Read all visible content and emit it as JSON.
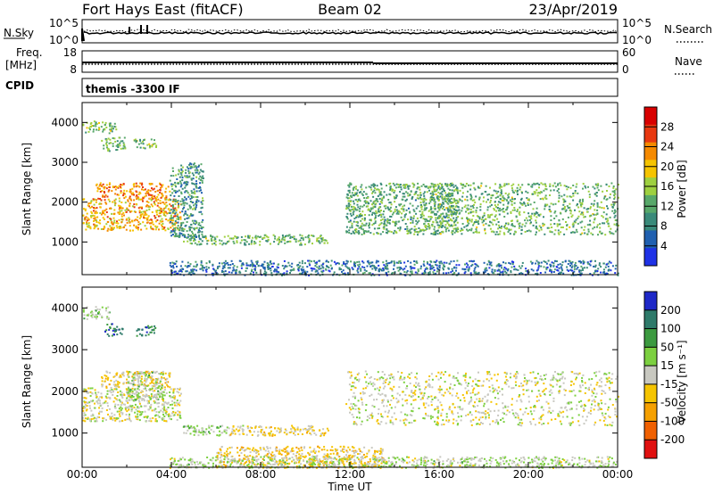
{
  "header": {
    "title": "Fort Hays East (fitACF)",
    "beam": "Beam 02",
    "date": "23/Apr/2019"
  },
  "status_panels": {
    "nsky_label": "N.Sky",
    "nsky_ticks": [
      "10^5",
      "10^0"
    ],
    "nsearch_label": "N.Search",
    "nsearch_ticks": [
      "10^5",
      "10^0"
    ],
    "freq_label_1": "Freq.",
    "freq_label_2": "[MHz]",
    "freq_ticks": [
      "18",
      "8"
    ],
    "nave_label": "Nave",
    "nave_ticks": [
      "60",
      "0"
    ],
    "cpid_label": "CPID",
    "cpid_value": "themis -3300 IF"
  },
  "x_axis": {
    "label": "Time UT",
    "ticks": [
      "00:00",
      "04:00",
      "08:00",
      "12:00",
      "16:00",
      "20:00",
      "00:00"
    ]
  },
  "chart_data": [
    {
      "type": "heatmap",
      "name": "power",
      "ylabel": "Slant Range [km]",
      "yticks": [
        "1000",
        "2000",
        "3000",
        "4000"
      ],
      "ylim": [
        180,
        4500
      ],
      "xlim": [
        0,
        24
      ],
      "colorbar_label": "Power [dB]",
      "colorbar_ticks": [
        "4",
        "8",
        "12",
        "16",
        "20",
        "24",
        "28"
      ],
      "colorbar_range": [
        0,
        32
      ],
      "colors": [
        "#1f32e6",
        "#2060b0",
        "#3a8a7a",
        "#58a86a",
        "#9ed040",
        "#f5c400",
        "#f58a00",
        "#e83810",
        "#d80000"
      ],
      "regions": [
        {
          "t0": 0.0,
          "t1": 1.5,
          "r0": 3750,
          "r1": 4050,
          "level": 14
        },
        {
          "t0": 0.8,
          "t1": 1.9,
          "r0": 3300,
          "r1": 3650,
          "level": 13
        },
        {
          "t0": 2.3,
          "t1": 3.3,
          "r0": 3350,
          "r1": 3600,
          "level": 14
        },
        {
          "t0": 0.0,
          "t1": 4.4,
          "r0": 1300,
          "r1": 2100,
          "level": 21
        },
        {
          "t0": 0.6,
          "t1": 3.9,
          "r0": 2100,
          "r1": 2500,
          "level": 23
        },
        {
          "t0": 3.9,
          "t1": 5.4,
          "r0": 1100,
          "r1": 3000,
          "level": 10
        },
        {
          "t0": 4.5,
          "t1": 11.0,
          "r0": 950,
          "r1": 1200,
          "level": 13
        },
        {
          "t0": 11.8,
          "t1": 16.8,
          "r0": 1200,
          "r1": 2500,
          "level": 12
        },
        {
          "t0": 15.5,
          "t1": 24.0,
          "r0": 1200,
          "r1": 2500,
          "level": 13
        },
        {
          "t0": 3.9,
          "t1": 24.0,
          "r0": 180,
          "r1": 550,
          "level": 7
        }
      ]
    },
    {
      "type": "heatmap",
      "name": "velocity",
      "ylabel": "Slant Range [km]",
      "yticks": [
        "1000",
        "2000",
        "3000",
        "4000"
      ],
      "ylim": [
        180,
        4500
      ],
      "xlim": [
        0,
        24
      ],
      "colorbar_label": "Velocity [m s⁻¹]",
      "colorbar_ticks": [
        "200",
        "100",
        "50",
        "15",
        "-15",
        "-50",
        "-100",
        "-200"
      ],
      "colorbar_range": [
        -250,
        250
      ],
      "colors": [
        "#1e28c8",
        "#2e7a6a",
        "#3c9a40",
        "#7cd040",
        "#c8c8c0",
        "#f5c400",
        "#f5a000",
        "#f06000",
        "#e01010"
      ],
      "regions": [
        {
          "t0": 0.0,
          "t1": 1.2,
          "r0": 3750,
          "r1": 4050,
          "level": 40
        },
        {
          "t0": 1.0,
          "t1": 1.8,
          "r0": 3350,
          "r1": 3650,
          "level": 180
        },
        {
          "t0": 2.4,
          "t1": 3.3,
          "r0": 3350,
          "r1": 3600,
          "level": 160
        },
        {
          "t0": 0.0,
          "t1": 4.4,
          "r0": 1300,
          "r1": 2100,
          "level": 0
        },
        {
          "t0": 0.8,
          "t1": 3.9,
          "r0": 2100,
          "r1": 2500,
          "level": -40
        },
        {
          "t0": 2.0,
          "t1": 3.6,
          "r0": 1800,
          "r1": 2500,
          "level": 30
        },
        {
          "t0": 4.5,
          "t1": 6.5,
          "r0": 950,
          "r1": 1200,
          "level": 35
        },
        {
          "t0": 6.5,
          "t1": 11.0,
          "r0": 950,
          "r1": 1200,
          "level": -30
        },
        {
          "t0": 11.8,
          "t1": 24.0,
          "r0": 1200,
          "r1": 2500,
          "level": 0
        },
        {
          "t0": 6.0,
          "t1": 13.5,
          "r0": 180,
          "r1": 700,
          "level": -45
        },
        {
          "t0": 3.9,
          "t1": 24.0,
          "r0": 180,
          "r1": 450,
          "level": 25
        }
      ]
    }
  ]
}
